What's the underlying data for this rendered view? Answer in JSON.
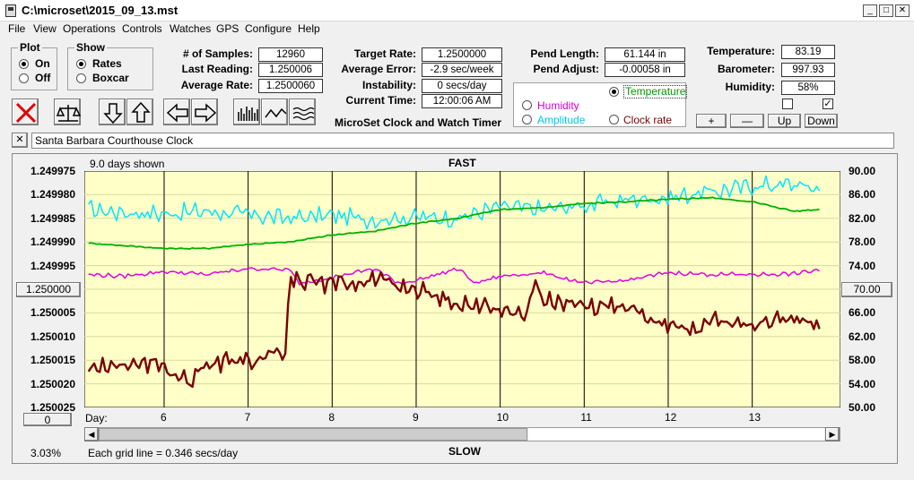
{
  "window": {
    "title": "C:\\microset\\2015_09_13.mst",
    "minimize": "_",
    "maximize": "□",
    "close": "✕"
  },
  "menu": [
    "File",
    "View",
    "Operations",
    "Controls",
    "Watches",
    "GPS",
    "Configure",
    "Help"
  ],
  "plot_group": {
    "title": "Plot",
    "on": "On",
    "off": "Off",
    "selected": "On"
  },
  "show_group": {
    "title": "Show",
    "rates": "Rates",
    "boxcar": "Boxcar",
    "selected": "Rates"
  },
  "stats": {
    "samples_label": "# of Samples:",
    "samples": "12960",
    "last_label": "Last Reading:",
    "last": "1.250006",
    "avg_label": "Average Rate:",
    "avg": "1.2500060",
    "target_label": "Target Rate:",
    "target": "1.2500000",
    "avgerr_label": "Average Error:",
    "avgerr": "-2.9 sec/week",
    "instab_label": "Instability:",
    "instab": "0 secs/day",
    "time_label": "Current Time:",
    "time": "12:00:06 AM",
    "pendlen_label": "Pend Length:",
    "pendlen": "61.144 in",
    "pendadj_label": "Pend Adjust:",
    "pendadj": "-0.00058 in",
    "temp_label": "Temperature:",
    "temp": "83.19",
    "baro_label": "Barometer:",
    "baro": "997.93",
    "hum_label": "Humidity:",
    "hum": "58%"
  },
  "app_caption": "MicroSet Clock and Watch Timer",
  "sensor_select": {
    "temperature": "Temperature",
    "humidity": "Humidity",
    "amplitude": "Amplitude",
    "clock_rate": "Clock rate",
    "selected": "Temperature"
  },
  "scale_buttons": {
    "plus": "+",
    "minus": "—",
    "up": "Up",
    "down": "Down"
  },
  "clock_name": "Santa Barbara Courthouse Clock",
  "clear_btn": "✕",
  "chart_header": {
    "days_shown": "9.0 days shown",
    "top": "FAST",
    "bottom": "SLOW"
  },
  "left_center_btn": "1.250000",
  "right_center_btn": "70.00",
  "bottom_left_btn": "0",
  "zoom_pct": "3.03%",
  "grid_note": "Each grid line = 0.346 secs/day",
  "colors": {
    "plot_bg": "#ffffc8",
    "temperature": "#00e5ff",
    "barometer": "#00b000",
    "humidity": "#e000e0",
    "rate": "#7a0000"
  },
  "chart_data": {
    "type": "line",
    "x_label": "Day:",
    "x_ticks": [
      "6",
      "7",
      "8",
      "9",
      "10",
      "11",
      "12",
      "13"
    ],
    "x_range": [
      5.05,
      14.05
    ],
    "left_axis": {
      "range": [
        1.249975,
        1.250025
      ],
      "ticks": [
        "1.249975",
        "1.249980",
        "1.249985",
        "1.249990",
        "1.249995",
        "1.250000",
        "1.250005",
        "1.250010",
        "1.250015",
        "1.250020",
        "1.250025"
      ],
      "inverted": true
    },
    "right_axis": {
      "range": [
        50,
        90
      ],
      "ticks": [
        "90.00",
        "86.00",
        "82.00",
        "78.00",
        "74.00",
        "70.00",
        "66.00",
        "62.00",
        "58.00",
        "54.00",
        "50.00"
      ]
    },
    "series": [
      {
        "key": "temperature",
        "axis": "right",
        "x": [
          5.1,
          5.5,
          6.0,
          6.5,
          7.0,
          7.5,
          8.0,
          8.5,
          9.0,
          9.5,
          10.0,
          10.5,
          11.0,
          11.5,
          12.0,
          12.5,
          13.0,
          13.5,
          13.8
        ],
        "y": [
          83.5,
          83.0,
          82.8,
          83.2,
          82.6,
          82.0,
          82.5,
          81.8,
          82.2,
          82.0,
          84.0,
          83.5,
          84.2,
          85.2,
          85.5,
          86.5,
          87.5,
          87.8,
          87.0
        ]
      },
      {
        "key": "barometer",
        "axis": "right",
        "x": [
          5.1,
          5.5,
          6.0,
          6.5,
          7.0,
          7.5,
          8.0,
          8.5,
          9.0,
          9.5,
          10.0,
          10.5,
          11.0,
          11.5,
          12.0,
          12.5,
          13.0,
          13.5,
          13.8
        ],
        "y": [
          77.8,
          77.4,
          76.9,
          76.9,
          77.6,
          78.0,
          79.2,
          79.8,
          81.2,
          82.0,
          83.5,
          83.8,
          84.5,
          84.8,
          85.2,
          85.5,
          84.8,
          83.2,
          83.5
        ]
      },
      {
        "key": "humidity",
        "axis": "right",
        "x": [
          5.1,
          5.5,
          6.0,
          6.5,
          7.0,
          7.5,
          7.6,
          8.0,
          8.5,
          8.8,
          9.0,
          9.5,
          9.7,
          10.0,
          10.5,
          11.0,
          11.5,
          12.0,
          12.5,
          13.0,
          13.5,
          13.8
        ],
        "y": [
          72.5,
          72.2,
          73.0,
          72.5,
          73.5,
          73.3,
          71.0,
          72.0,
          73.5,
          71.0,
          71.5,
          73.5,
          71.0,
          72.2,
          72.8,
          71.0,
          71.5,
          72.8,
          72.5,
          72.5,
          72.6,
          73.3
        ]
      },
      {
        "key": "rate",
        "axis": "left",
        "x": [
          5.1,
          5.5,
          6.0,
          6.3,
          6.5,
          7.0,
          7.3,
          7.45,
          7.5,
          7.6,
          8.0,
          8.5,
          9.0,
          9.5,
          10.0,
          10.3,
          10.4,
          10.5,
          10.7,
          11.0,
          11.5,
          12.0,
          12.3,
          12.5,
          13.0,
          13.5,
          13.8
        ],
        "y": [
          1.250017,
          1.250016,
          1.250016,
          1.25002,
          1.250016,
          1.250015,
          1.250014,
          1.250014,
          1.249997,
          1.249998,
          1.249999,
          1.249998,
          1.25,
          1.250003,
          1.250004,
          1.250006,
          1.249998,
          1.250002,
          1.250003,
          1.250004,
          1.250003,
          1.250008,
          1.250009,
          1.250006,
          1.250008,
          1.250006,
          1.250008
        ]
      }
    ]
  }
}
